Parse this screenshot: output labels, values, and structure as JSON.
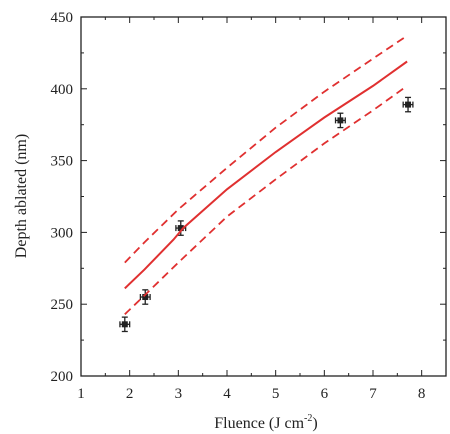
{
  "chart_data": {
    "type": "scatter",
    "xlabel": "Fluence (J cm",
    "xlabel_sup": "-2",
    "xlabel_close": ")",
    "ylabel": "Depth ablated (nm)",
    "xlim": [
      1,
      8.5
    ],
    "ylim": [
      200,
      450
    ],
    "xticks": [
      1,
      2,
      3,
      4,
      5,
      6,
      7,
      8
    ],
    "yticks": [
      200,
      250,
      300,
      350,
      400,
      450
    ],
    "grid": false,
    "series": [
      {
        "kind": "points",
        "color": "#222222",
        "x": [
          1.9,
          2.32,
          3.05,
          6.33,
          7.72
        ],
        "y": [
          236,
          255,
          303,
          378,
          389
        ],
        "xerr": [
          0.1,
          0.1,
          0.1,
          0.1,
          0.1
        ],
        "yerr": [
          5,
          5,
          5,
          5,
          5
        ]
      },
      {
        "kind": "line",
        "style": "solid",
        "color": "#e03030",
        "x": [
          1.9,
          2.3,
          2.9,
          3.1,
          4.0,
          5.0,
          6.0,
          7.0,
          7.7
        ],
        "y": [
          261,
          274,
          295,
          303,
          330,
          356,
          380,
          402,
          419
        ]
      },
      {
        "kind": "line",
        "style": "dashed",
        "color": "#e03030",
        "x": [
          1.9,
          2.3,
          3.0,
          4.0,
          5.0,
          6.0,
          7.0,
          7.7
        ],
        "y": [
          279,
          293,
          316,
          345,
          373,
          398,
          421,
          437
        ]
      },
      {
        "kind": "line",
        "style": "dashed",
        "color": "#e03030",
        "x": [
          1.9,
          2.3,
          3.0,
          4.0,
          5.0,
          6.0,
          7.0,
          7.7
        ],
        "y": [
          243,
          256,
          279,
          311,
          337,
          362,
          385,
          402
        ]
      }
    ]
  }
}
